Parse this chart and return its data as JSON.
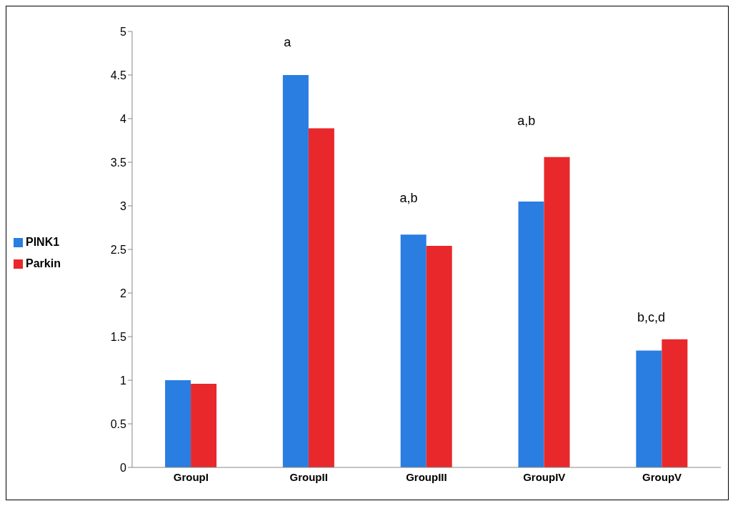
{
  "chart_data": {
    "type": "bar",
    "categories": [
      "GroupI",
      "GroupII",
      "GroupIII",
      "GroupIV",
      "GroupV"
    ],
    "series": [
      {
        "name": "PINK1",
        "color": "#2a7de1",
        "values": [
          1.0,
          4.5,
          2.67,
          3.05,
          1.34
        ]
      },
      {
        "name": "Parkin",
        "color": "#e8282a",
        "values": [
          0.96,
          3.89,
          2.54,
          3.56,
          1.47
        ]
      }
    ],
    "ylim": [
      0,
      5
    ],
    "yticks": [
      0,
      0.5,
      1,
      1.5,
      2,
      2.5,
      3,
      3.5,
      4,
      4.5,
      5
    ],
    "grid": false,
    "legend": "left",
    "annotations": [
      "a",
      "a,b",
      "a,b",
      "b,c,d"
    ]
  }
}
